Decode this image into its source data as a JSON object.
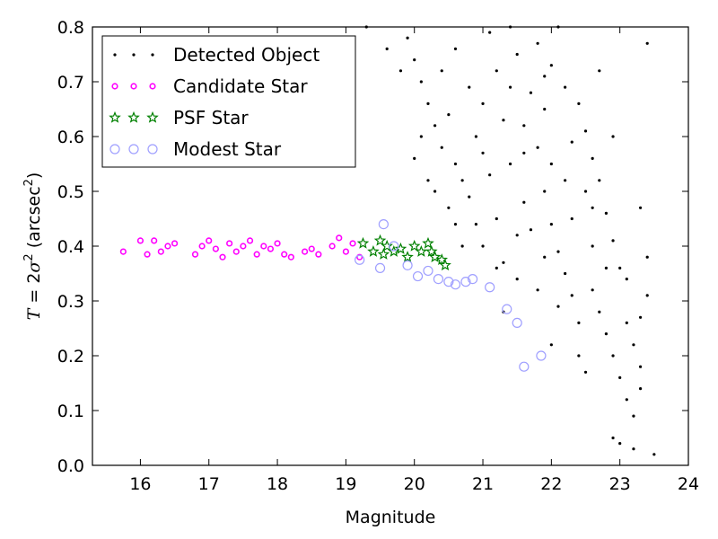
{
  "chart_data": {
    "type": "scatter",
    "xlabel": "Magnitude",
    "ylabel_parts": {
      "var": "T",
      "eq": " = 2",
      "sigma": "σ",
      "exp": "2",
      "unit_open": " (arcsec",
      "unit_exp": "2",
      "unit_close": ")"
    },
    "xlim": [
      15.3,
      24
    ],
    "ylim": [
      0.0,
      0.8
    ],
    "xticks": [
      "16",
      "17",
      "18",
      "19",
      "20",
      "21",
      "22",
      "23",
      "24"
    ],
    "yticks": [
      "0.0",
      "0.1",
      "0.2",
      "0.3",
      "0.4",
      "0.5",
      "0.6",
      "0.7",
      "0.8"
    ],
    "grid": false,
    "legend_position": "top-left",
    "series": [
      {
        "name": "Detected Object",
        "marker": "dot",
        "color": "#000000",
        "points": [
          [
            19.3,
            0.8
          ],
          [
            19.6,
            0.76
          ],
          [
            19.8,
            0.72
          ],
          [
            19.9,
            0.78
          ],
          [
            20.0,
            0.74
          ],
          [
            20.1,
            0.7
          ],
          [
            20.2,
            0.66
          ],
          [
            20.3,
            0.62
          ],
          [
            20.1,
            0.6
          ],
          [
            20.4,
            0.58
          ],
          [
            20.5,
            0.64
          ],
          [
            20.6,
            0.55
          ],
          [
            20.7,
            0.52
          ],
          [
            20.8,
            0.49
          ],
          [
            20.5,
            0.47
          ],
          [
            20.3,
            0.5
          ],
          [
            20.9,
            0.6
          ],
          [
            21.0,
            0.57
          ],
          [
            21.1,
            0.53
          ],
          [
            21.2,
            0.45
          ],
          [
            21.0,
            0.4
          ],
          [
            21.3,
            0.37
          ],
          [
            21.5,
            0.42
          ],
          [
            21.4,
            0.55
          ],
          [
            21.6,
            0.62
          ],
          [
            21.7,
            0.68
          ],
          [
            21.8,
            0.58
          ],
          [
            21.9,
            0.5
          ],
          [
            22.0,
            0.44
          ],
          [
            22.1,
            0.39
          ],
          [
            22.2,
            0.35
          ],
          [
            22.3,
            0.31
          ],
          [
            21.2,
            0.72
          ],
          [
            21.5,
            0.75
          ],
          [
            21.8,
            0.77
          ],
          [
            22.0,
            0.73
          ],
          [
            22.2,
            0.69
          ],
          [
            22.4,
            0.66
          ],
          [
            22.5,
            0.61
          ],
          [
            22.6,
            0.56
          ],
          [
            22.7,
            0.52
          ],
          [
            22.8,
            0.46
          ],
          [
            22.9,
            0.41
          ],
          [
            23.0,
            0.36
          ],
          [
            22.6,
            0.32
          ],
          [
            22.7,
            0.28
          ],
          [
            22.8,
            0.24
          ],
          [
            22.9,
            0.2
          ],
          [
            23.0,
            0.16
          ],
          [
            23.1,
            0.12
          ],
          [
            23.2,
            0.09
          ],
          [
            23.3,
            0.14
          ],
          [
            23.2,
            0.22
          ],
          [
            23.3,
            0.27
          ],
          [
            23.4,
            0.31
          ],
          [
            23.1,
            0.34
          ],
          [
            22.9,
            0.05
          ],
          [
            23.0,
            0.04
          ],
          [
            23.2,
            0.03
          ],
          [
            23.5,
            0.02
          ],
          [
            23.3,
            0.18
          ],
          [
            22.5,
            0.17
          ],
          [
            22.4,
            0.26
          ],
          [
            22.6,
            0.4
          ],
          [
            21.1,
            0.79
          ],
          [
            21.4,
            0.8
          ],
          [
            22.1,
            0.8
          ],
          [
            21.9,
            0.65
          ],
          [
            21.3,
            0.63
          ],
          [
            20.9,
            0.44
          ],
          [
            21.6,
            0.48
          ],
          [
            21.7,
            0.43
          ],
          [
            22.3,
            0.45
          ],
          [
            22.5,
            0.5
          ],
          [
            22.0,
            0.55
          ],
          [
            21.5,
            0.34
          ],
          [
            21.8,
            0.32
          ],
          [
            22.1,
            0.29
          ],
          [
            22.0,
            0.22
          ],
          [
            21.3,
            0.28
          ],
          [
            20.4,
            0.72
          ],
          [
            20.6,
            0.76
          ],
          [
            20.8,
            0.69
          ],
          [
            20.7,
            0.4
          ],
          [
            21.2,
            0.36
          ],
          [
            21.9,
            0.38
          ],
          [
            22.4,
            0.2
          ],
          [
            23.1,
            0.26
          ],
          [
            23.3,
            0.47
          ],
          [
            23.4,
            0.38
          ],
          [
            22.9,
            0.6
          ],
          [
            23.4,
            0.77
          ],
          [
            22.7,
            0.72
          ],
          [
            22.3,
            0.59
          ],
          [
            21.9,
            0.71
          ],
          [
            21.6,
            0.57
          ],
          [
            20.2,
            0.52
          ],
          [
            20.0,
            0.56
          ],
          [
            20.6,
            0.44
          ],
          [
            21.0,
            0.66
          ],
          [
            21.4,
            0.69
          ],
          [
            22.2,
            0.52
          ],
          [
            22.6,
            0.47
          ],
          [
            22.8,
            0.36
          ]
        ]
      },
      {
        "name": "Candidate Star",
        "marker": "dot",
        "color": "#ff00ff",
        "points": [
          [
            15.75,
            0.39
          ],
          [
            16.0,
            0.41
          ],
          [
            16.1,
            0.385
          ],
          [
            16.2,
            0.41
          ],
          [
            16.3,
            0.39
          ],
          [
            16.4,
            0.4
          ],
          [
            16.5,
            0.405
          ],
          [
            16.8,
            0.385
          ],
          [
            16.9,
            0.4
          ],
          [
            17.0,
            0.41
          ],
          [
            17.1,
            0.395
          ],
          [
            17.2,
            0.38
          ],
          [
            17.3,
            0.405
          ],
          [
            17.4,
            0.39
          ],
          [
            17.5,
            0.4
          ],
          [
            17.6,
            0.41
          ],
          [
            17.7,
            0.385
          ],
          [
            17.8,
            0.4
          ],
          [
            17.9,
            0.395
          ],
          [
            18.0,
            0.405
          ],
          [
            18.1,
            0.385
          ],
          [
            18.2,
            0.38
          ],
          [
            18.4,
            0.39
          ],
          [
            18.5,
            0.395
          ],
          [
            18.6,
            0.385
          ],
          [
            18.8,
            0.4
          ],
          [
            18.9,
            0.415
          ],
          [
            19.0,
            0.39
          ],
          [
            19.1,
            0.405
          ],
          [
            19.2,
            0.38
          ]
        ]
      },
      {
        "name": "PSF Star",
        "marker": "star",
        "color": "#008000",
        "points": [
          [
            19.25,
            0.405
          ],
          [
            19.4,
            0.39
          ],
          [
            19.5,
            0.41
          ],
          [
            19.55,
            0.385
          ],
          [
            19.6,
            0.4
          ],
          [
            19.7,
            0.39
          ],
          [
            19.8,
            0.395
          ],
          [
            19.9,
            0.38
          ],
          [
            20.0,
            0.4
          ],
          [
            20.1,
            0.39
          ],
          [
            20.2,
            0.405
          ],
          [
            20.25,
            0.39
          ],
          [
            20.3,
            0.38
          ],
          [
            20.4,
            0.375
          ],
          [
            20.45,
            0.365
          ]
        ]
      },
      {
        "name": "Modest Star",
        "marker": "open-circle",
        "color": "#9f9fff",
        "points": [
          [
            19.2,
            0.375
          ],
          [
            19.5,
            0.36
          ],
          [
            19.7,
            0.4
          ],
          [
            19.9,
            0.365
          ],
          [
            20.05,
            0.345
          ],
          [
            20.2,
            0.355
          ],
          [
            20.35,
            0.34
          ],
          [
            20.5,
            0.335
          ],
          [
            20.6,
            0.33
          ],
          [
            20.75,
            0.335
          ],
          [
            20.85,
            0.34
          ],
          [
            21.1,
            0.325
          ],
          [
            21.35,
            0.285
          ],
          [
            21.5,
            0.26
          ],
          [
            21.6,
            0.18
          ],
          [
            21.85,
            0.2
          ],
          [
            19.55,
            0.44
          ]
        ]
      }
    ]
  },
  "legend": {
    "items": [
      "Detected Object",
      "Candidate Star",
      "PSF Star",
      "Modest Star"
    ]
  }
}
